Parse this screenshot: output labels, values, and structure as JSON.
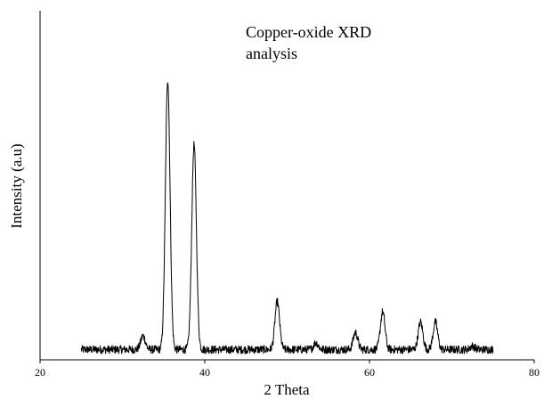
{
  "chart_data": {
    "type": "line",
    "title_lines": [
      "Copper-oxide XRD",
      "analysis"
    ],
    "xlabel": "2 Theta",
    "ylabel": "Intensity (a.u)",
    "xlim": [
      20,
      80
    ],
    "ylim": [
      0,
      100
    ],
    "x_ticks": [
      20,
      40,
      60,
      80
    ],
    "y_ticks_shown": false,
    "grid": false,
    "legend": "none",
    "series": [
      {
        "color": "#000000",
        "x_range": [
          25,
          75
        ],
        "baseline": 3,
        "noise_amplitude": 1.2,
        "peaks": [
          {
            "x": 32.5,
            "y": 7
          },
          {
            "x": 35.5,
            "y": 82
          },
          {
            "x": 38.7,
            "y": 63
          },
          {
            "x": 48.8,
            "y": 17
          },
          {
            "x": 53.5,
            "y": 5
          },
          {
            "x": 58.3,
            "y": 8
          },
          {
            "x": 61.6,
            "y": 14
          },
          {
            "x": 66.2,
            "y": 11
          },
          {
            "x": 68.0,
            "y": 11
          },
          {
            "x": 72.5,
            "y": 4
          }
        ]
      }
    ]
  }
}
